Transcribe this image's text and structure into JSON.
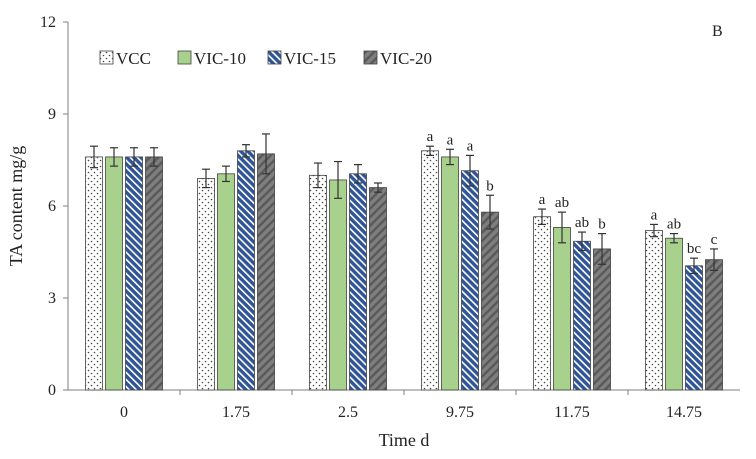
{
  "chart_data": {
    "type": "bar",
    "panel_label": "B",
    "xlabel": "Time d",
    "ylabel": "TA content mg/g",
    "ylim": [
      0,
      12
    ],
    "yticks": [
      "0",
      "3",
      "6",
      "9",
      "12"
    ],
    "ytick_values": [
      0,
      3,
      6,
      9,
      12
    ],
    "categories": [
      "0",
      "1.75",
      "2.5",
      "9.75",
      "11.75",
      "14.75"
    ],
    "legend_position": "top-left",
    "series": [
      {
        "name": "VCC",
        "pattern": "dots",
        "color": "#ffffff",
        "values": [
          7.6,
          6.9,
          7.0,
          7.8,
          5.65,
          5.2
        ],
        "errors": [
          0.35,
          0.3,
          0.4,
          0.15,
          0.25,
          0.2
        ],
        "labels": [
          "",
          "",
          "",
          "a",
          "a",
          "a"
        ]
      },
      {
        "name": "VIC-10",
        "pattern": "solid",
        "color": "#a9d18e",
        "values": [
          7.6,
          7.05,
          6.85,
          7.6,
          5.3,
          4.95
        ],
        "errors": [
          0.3,
          0.25,
          0.6,
          0.25,
          0.5,
          0.15
        ],
        "labels": [
          "",
          "",
          "",
          "a",
          "ab",
          "ab"
        ]
      },
      {
        "name": "VIC-15",
        "pattern": "stripes",
        "color": "#2f5597",
        "values": [
          7.6,
          7.8,
          7.05,
          7.15,
          4.85,
          4.05
        ],
        "errors": [
          0.3,
          0.2,
          0.3,
          0.5,
          0.3,
          0.25
        ],
        "labels": [
          "",
          "",
          "",
          "a",
          "ab",
          "bc"
        ]
      },
      {
        "name": "VIC-20",
        "pattern": "hatch",
        "color": "#7f7f7f",
        "values": [
          7.6,
          7.7,
          6.6,
          5.8,
          4.6,
          4.25
        ],
        "errors": [
          0.3,
          0.65,
          0.15,
          0.55,
          0.5,
          0.35
        ],
        "labels": [
          "",
          "",
          "",
          "b",
          "b",
          "c"
        ]
      }
    ]
  }
}
